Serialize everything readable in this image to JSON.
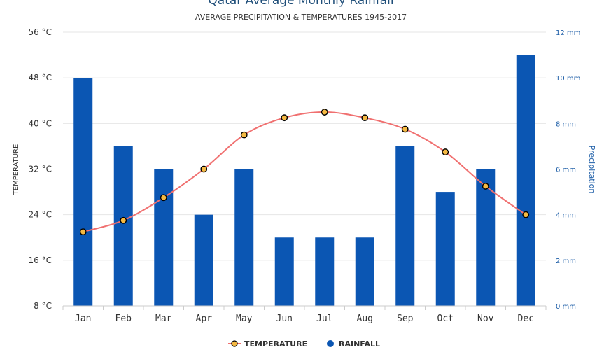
{
  "chart_data": {
    "type": "bar",
    "title": "Qatar Average Monthly Rainfall",
    "subtitle": "AVERAGE PRECIPITATION & TEMPERATURES 1945-2017",
    "categories": [
      "Jan",
      "Feb",
      "Mar",
      "Apr",
      "May",
      "Jun",
      "Jul",
      "Aug",
      "Sep",
      "Oct",
      "Nov",
      "Dec"
    ],
    "series": [
      {
        "name": "TEMPERATURE",
        "type": "line",
        "axis": "left",
        "unit": "°C",
        "color": "#f07070",
        "marker_fill": "#f5b942",
        "values": [
          21,
          23,
          27,
          32,
          38,
          41,
          42,
          41,
          39,
          35,
          29,
          24
        ]
      },
      {
        "name": "RAINFALL",
        "type": "bar",
        "axis": "right",
        "unit": "mm",
        "color": "#0b56b3",
        "values": [
          10,
          7,
          6,
          4,
          6,
          3,
          3,
          3,
          7,
          5,
          6,
          11
        ]
      }
    ],
    "y_left": {
      "label": "TEMPERATURE",
      "ticks": [
        "8 °C",
        "16 °C",
        "24 °C",
        "32 °C",
        "40 °C",
        "48 °C",
        "56 °C"
      ],
      "min": 8,
      "max": 56
    },
    "y_right": {
      "label": "Precipitation",
      "ticks": [
        "0 mm",
        "2 mm",
        "4 mm",
        "6 mm",
        "8 mm",
        "10 mm",
        "12 mm"
      ],
      "min": 0,
      "max": 12
    },
    "grid": true,
    "legend_position": "bottom-center"
  }
}
